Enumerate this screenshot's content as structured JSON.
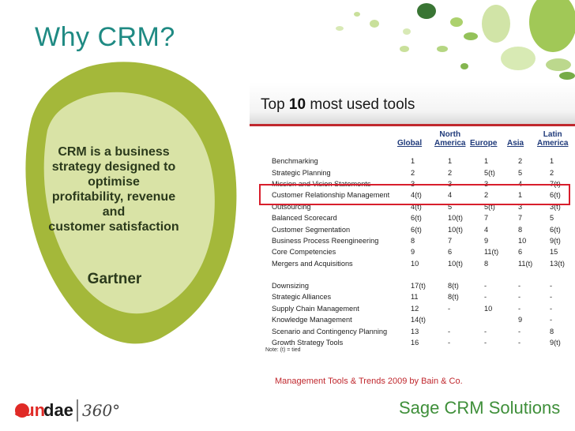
{
  "title": "Why CRM?",
  "leaf": {
    "lines": [
      "CRM is a business",
      "strategy designed to",
      "optimise",
      "profitability, revenue",
      "and",
      "customer satisfaction"
    ],
    "source": "Gartner"
  },
  "table_panel": {
    "title_prefix": "Top ",
    "title_bold": "10",
    "title_suffix": " most used tools",
    "columns": [
      {
        "line1": "",
        "line2": "Global"
      },
      {
        "line1": "North",
        "line2": "America"
      },
      {
        "line1": "",
        "line2": "Europe"
      },
      {
        "line1": "",
        "line2": "Asia"
      },
      {
        "line1": "Latin",
        "line2": "America"
      }
    ],
    "top10": [
      {
        "tool": "Benchmarking",
        "v": [
          "1",
          "1",
          "1",
          "2",
          "1"
        ]
      },
      {
        "tool": "Strategic Planning",
        "v": [
          "2",
          "2",
          "5(t)",
          "5",
          "2"
        ]
      },
      {
        "tool": "Mission and Vision Statements",
        "v": [
          "3",
          "3",
          "3",
          "4",
          "7(t)"
        ]
      },
      {
        "tool": "Customer Relationship Management",
        "v": [
          "4(t)",
          "4",
          "2",
          "1",
          "6(t)"
        ]
      },
      {
        "tool": "Outsourcing",
        "v": [
          "4(t)",
          "5",
          "5(t)",
          "3",
          "3(t)"
        ]
      },
      {
        "tool": "Balanced Scorecard",
        "v": [
          "6(t)",
          "10(t)",
          "7",
          "7",
          "5"
        ]
      },
      {
        "tool": "Customer Segmentation",
        "v": [
          "6(t)",
          "10(t)",
          "4",
          "8",
          "6(t)"
        ]
      },
      {
        "tool": "Business Process Reengineering",
        "v": [
          "8",
          "7",
          "9",
          "10",
          "9(t)"
        ]
      },
      {
        "tool": "Core Competencies",
        "v": [
          "9",
          "6",
          "11(t)",
          "6",
          "15"
        ]
      },
      {
        "tool": "Mergers and Acquisitions",
        "v": [
          "10",
          "10(t)",
          "8",
          "11(t)",
          "13(t)"
        ]
      }
    ],
    "others": [
      {
        "tool": "Downsizing",
        "v": [
          "17(t)",
          "8(t)",
          "-",
          "-",
          "-"
        ]
      },
      {
        "tool": "Strategic Alliances",
        "v": [
          "11",
          "8(t)",
          "-",
          "-",
          "-"
        ]
      },
      {
        "tool": "Supply Chain Management",
        "v": [
          "12",
          "-",
          "10",
          "-",
          "-"
        ]
      },
      {
        "tool": "Knowledge Management",
        "v": [
          "14(t)",
          "",
          "",
          "9",
          "-"
        ]
      },
      {
        "tool": "Scenario and Contingency Planning",
        "v": [
          "13",
          "-",
          "-",
          "-",
          "8"
        ]
      },
      {
        "tool": "Growth Strategy Tools",
        "v": [
          "16",
          "-",
          "-",
          "-",
          "9(t)"
        ]
      }
    ],
    "note": "Note: (t) = tied"
  },
  "caption": "Management Tools & Trends 2009 by Bain & Co.",
  "logos": {
    "sundae_left": "sun",
    "sundae_right": "dae",
    "sundae_suffix": "360°",
    "sage": "Sage CRM Solutions"
  },
  "colors": {
    "title": "#1f8a83",
    "leaf_outer": "#a4b83a",
    "leaf_inner": "#d9e3a6",
    "accent_red": "#d81e2c",
    "sage_green": "#3f8f3a"
  }
}
